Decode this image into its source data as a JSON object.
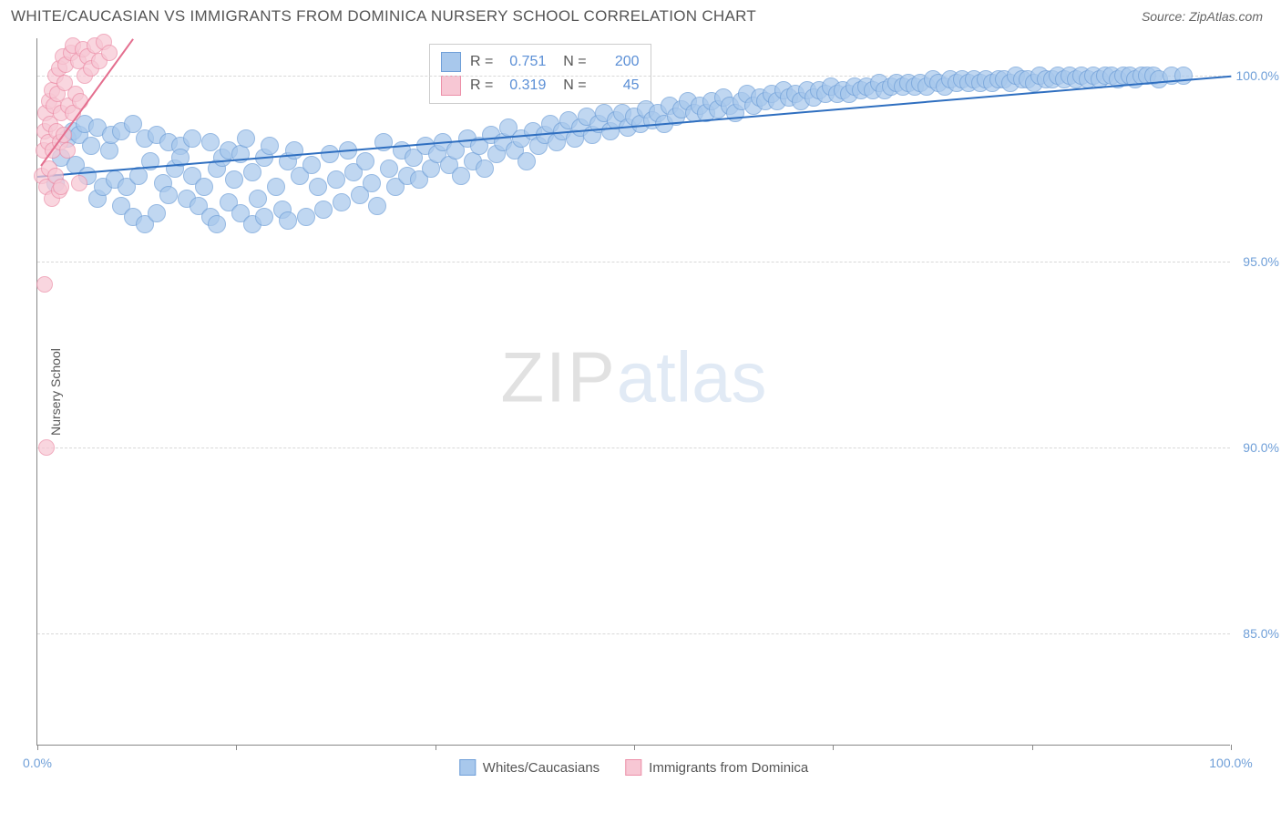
{
  "title": "WHITE/CAUCASIAN VS IMMIGRANTS FROM DOMINICA NURSERY SCHOOL CORRELATION CHART",
  "source_label": "Source: ZipAtlas.com",
  "y_axis_title": "Nursery School",
  "watermark": {
    "zip": "ZIP",
    "atlas": "atlas"
  },
  "chart": {
    "type": "scatter",
    "background_color": "#ffffff",
    "grid_color": "#d8d8d8",
    "axis_color": "#888888",
    "tick_label_color": "#6f9fd8",
    "xlim": [
      0,
      100
    ],
    "ylim": [
      82,
      101
    ],
    "yticks": [
      {
        "v": 85.0,
        "label": "85.0%"
      },
      {
        "v": 90.0,
        "label": "90.0%"
      },
      {
        "v": 95.0,
        "label": "95.0%"
      },
      {
        "v": 100.0,
        "label": "100.0%"
      }
    ],
    "xticks": [
      {
        "v": 0,
        "label": "0.0%"
      },
      {
        "v": 16.67,
        "label": ""
      },
      {
        "v": 33.33,
        "label": ""
      },
      {
        "v": 50.0,
        "label": ""
      },
      {
        "v": 66.67,
        "label": ""
      },
      {
        "v": 83.33,
        "label": ""
      },
      {
        "v": 100,
        "label": "100.0%"
      }
    ],
    "series": [
      {
        "name": "Whites/Caucasians",
        "marker_fill": "#a8c8ec",
        "marker_stroke": "#6f9fd8",
        "marker_opacity": 0.72,
        "marker_radius": 10,
        "line_color": "#2f6fc0",
        "R": "0.751",
        "N": "200",
        "trend": {
          "x1": 0,
          "y1": 97.3,
          "x2": 100,
          "y2": 100.0
        },
        "points": [
          [
            1.5,
            97.1
          ],
          [
            2,
            97.8
          ],
          [
            2.5,
            98.3
          ],
          [
            3,
            98.5
          ],
          [
            3.2,
            97.6
          ],
          [
            3.5,
            98.4
          ],
          [
            4,
            98.7
          ],
          [
            4.2,
            97.3
          ],
          [
            4.5,
            98.1
          ],
          [
            5,
            98.6
          ],
          [
            5,
            96.7
          ],
          [
            5.5,
            97.0
          ],
          [
            6,
            98.0
          ],
          [
            6.2,
            98.4
          ],
          [
            6.5,
            97.2
          ],
          [
            7,
            98.5
          ],
          [
            7,
            96.5
          ],
          [
            7.5,
            97.0
          ],
          [
            8,
            98.7
          ],
          [
            8,
            96.2
          ],
          [
            8.5,
            97.3
          ],
          [
            9,
            98.3
          ],
          [
            9,
            96.0
          ],
          [
            9.5,
            97.7
          ],
          [
            10,
            98.4
          ],
          [
            10,
            96.3
          ],
          [
            10.5,
            97.1
          ],
          [
            11,
            98.2
          ],
          [
            11,
            96.8
          ],
          [
            11.5,
            97.5
          ],
          [
            12,
            98.1
          ],
          [
            12,
            97.8
          ],
          [
            12.5,
            96.7
          ],
          [
            13,
            97.3
          ],
          [
            13,
            98.3
          ],
          [
            13.5,
            96.5
          ],
          [
            14,
            97.0
          ],
          [
            14.5,
            98.2
          ],
          [
            14.5,
            96.2
          ],
          [
            15,
            97.5
          ],
          [
            15,
            96.0
          ],
          [
            15.5,
            97.8
          ],
          [
            16,
            96.6
          ],
          [
            16,
            98.0
          ],
          [
            16.5,
            97.2
          ],
          [
            17,
            96.3
          ],
          [
            17,
            97.9
          ],
          [
            17.5,
            98.3
          ],
          [
            18,
            96.0
          ],
          [
            18,
            97.4
          ],
          [
            18.5,
            96.7
          ],
          [
            19,
            97.8
          ],
          [
            19,
            96.2
          ],
          [
            19.5,
            98.1
          ],
          [
            20,
            97.0
          ],
          [
            20.5,
            96.4
          ],
          [
            21,
            97.7
          ],
          [
            21,
            96.1
          ],
          [
            21.5,
            98.0
          ],
          [
            22,
            97.3
          ],
          [
            22.5,
            96.2
          ],
          [
            23,
            97.6
          ],
          [
            23.5,
            97.0
          ],
          [
            24,
            96.4
          ],
          [
            24.5,
            97.9
          ],
          [
            25,
            97.2
          ],
          [
            25.5,
            96.6
          ],
          [
            26,
            98.0
          ],
          [
            26.5,
            97.4
          ],
          [
            27,
            96.8
          ],
          [
            27.5,
            97.7
          ],
          [
            28,
            97.1
          ],
          [
            28.5,
            96.5
          ],
          [
            29,
            98.2
          ],
          [
            29.5,
            97.5
          ],
          [
            30,
            97.0
          ],
          [
            30.5,
            98.0
          ],
          [
            31,
            97.3
          ],
          [
            31.5,
            97.8
          ],
          [
            32,
            97.2
          ],
          [
            32.5,
            98.1
          ],
          [
            33,
            97.5
          ],
          [
            33.5,
            97.9
          ],
          [
            34,
            98.2
          ],
          [
            34.5,
            97.6
          ],
          [
            35,
            98.0
          ],
          [
            35.5,
            97.3
          ],
          [
            36,
            98.3
          ],
          [
            36.5,
            97.7
          ],
          [
            37,
            98.1
          ],
          [
            37.5,
            97.5
          ],
          [
            38,
            98.4
          ],
          [
            38.5,
            97.9
          ],
          [
            39,
            98.2
          ],
          [
            39.5,
            98.6
          ],
          [
            40,
            98.0
          ],
          [
            40.5,
            98.3
          ],
          [
            41,
            97.7
          ],
          [
            41.5,
            98.5
          ],
          [
            42,
            98.1
          ],
          [
            42.5,
            98.4
          ],
          [
            43,
            98.7
          ],
          [
            43.5,
            98.2
          ],
          [
            44,
            98.5
          ],
          [
            44.5,
            98.8
          ],
          [
            45,
            98.3
          ],
          [
            45.5,
            98.6
          ],
          [
            46,
            98.9
          ],
          [
            46.5,
            98.4
          ],
          [
            47,
            98.7
          ],
          [
            47.5,
            99.0
          ],
          [
            48,
            98.5
          ],
          [
            48.5,
            98.8
          ],
          [
            49,
            99.0
          ],
          [
            49.5,
            98.6
          ],
          [
            50,
            98.9
          ],
          [
            50.5,
            98.7
          ],
          [
            51,
            99.1
          ],
          [
            51.5,
            98.8
          ],
          [
            52,
            99.0
          ],
          [
            52.5,
            98.7
          ],
          [
            53,
            99.2
          ],
          [
            53.5,
            98.9
          ],
          [
            54,
            99.1
          ],
          [
            54.5,
            99.3
          ],
          [
            55,
            99.0
          ],
          [
            55.5,
            99.2
          ],
          [
            56,
            99.0
          ],
          [
            56.5,
            99.3
          ],
          [
            57,
            99.1
          ],
          [
            57.5,
            99.4
          ],
          [
            58,
            99.2
          ],
          [
            58.5,
            99.0
          ],
          [
            59,
            99.3
          ],
          [
            59.5,
            99.5
          ],
          [
            60,
            99.2
          ],
          [
            60.5,
            99.4
          ],
          [
            61,
            99.3
          ],
          [
            61.5,
            99.5
          ],
          [
            62,
            99.3
          ],
          [
            62.5,
            99.6
          ],
          [
            63,
            99.4
          ],
          [
            63.5,
            99.5
          ],
          [
            64,
            99.3
          ],
          [
            64.5,
            99.6
          ],
          [
            65,
            99.4
          ],
          [
            65.5,
            99.6
          ],
          [
            66,
            99.5
          ],
          [
            66.5,
            99.7
          ],
          [
            67,
            99.5
          ],
          [
            67.5,
            99.6
          ],
          [
            68,
            99.5
          ],
          [
            68.5,
            99.7
          ],
          [
            69,
            99.6
          ],
          [
            69.5,
            99.7
          ],
          [
            70,
            99.6
          ],
          [
            70.5,
            99.8
          ],
          [
            71,
            99.6
          ],
          [
            71.5,
            99.7
          ],
          [
            72,
            99.8
          ],
          [
            72.5,
            99.7
          ],
          [
            73,
            99.8
          ],
          [
            73.5,
            99.7
          ],
          [
            74,
            99.8
          ],
          [
            74.5,
            99.7
          ],
          [
            75,
            99.9
          ],
          [
            75.5,
            99.8
          ],
          [
            76,
            99.7
          ],
          [
            76.5,
            99.9
          ],
          [
            77,
            99.8
          ],
          [
            77.5,
            99.9
          ],
          [
            78,
            99.8
          ],
          [
            78.5,
            99.9
          ],
          [
            79,
            99.8
          ],
          [
            79.5,
            99.9
          ],
          [
            80,
            99.8
          ],
          [
            80.5,
            99.9
          ],
          [
            81,
            99.9
          ],
          [
            81.5,
            99.8
          ],
          [
            82,
            100.0
          ],
          [
            82.5,
            99.9
          ],
          [
            83,
            99.9
          ],
          [
            83.5,
            99.8
          ],
          [
            84,
            100.0
          ],
          [
            84.5,
            99.9
          ],
          [
            85,
            99.9
          ],
          [
            85.5,
            100.0
          ],
          [
            86,
            99.9
          ],
          [
            86.5,
            100.0
          ],
          [
            87,
            99.9
          ],
          [
            87.5,
            100.0
          ],
          [
            88,
            99.9
          ],
          [
            88.5,
            100.0
          ],
          [
            89,
            99.9
          ],
          [
            89.5,
            100.0
          ],
          [
            90,
            100.0
          ],
          [
            90.5,
            99.9
          ],
          [
            91,
            100.0
          ],
          [
            91.5,
            100.0
          ],
          [
            92,
            99.9
          ],
          [
            92.5,
            100.0
          ],
          [
            93,
            100.0
          ],
          [
            93.5,
            100.0
          ],
          [
            94,
            99.9
          ],
          [
            95,
            100.0
          ],
          [
            96,
            100.0
          ]
        ]
      },
      {
        "name": "Immigrants from Dominica",
        "marker_fill": "#f7c7d4",
        "marker_stroke": "#ec8fa8",
        "marker_opacity": 0.72,
        "marker_radius": 9,
        "line_color": "#e46f8f",
        "R": "0.319",
        "N": "45",
        "trend": {
          "x1": 0.3,
          "y1": 97.6,
          "x2": 8.0,
          "y2": 101.0
        },
        "points": [
          [
            0.4,
            97.3
          ],
          [
            0.5,
            98.0
          ],
          [
            0.6,
            98.5
          ],
          [
            0.7,
            99.0
          ],
          [
            0.8,
            97.0
          ],
          [
            0.9,
            98.2
          ],
          [
            1.0,
            99.3
          ],
          [
            1.0,
            97.5
          ],
          [
            1.1,
            98.7
          ],
          [
            1.2,
            99.6
          ],
          [
            1.2,
            96.7
          ],
          [
            1.3,
            98.0
          ],
          [
            1.4,
            99.2
          ],
          [
            1.5,
            100.0
          ],
          [
            1.5,
            97.3
          ],
          [
            1.6,
            98.5
          ],
          [
            1.7,
            99.5
          ],
          [
            1.8,
            100.2
          ],
          [
            1.8,
            96.9
          ],
          [
            1.9,
            98.2
          ],
          [
            2.0,
            99.0
          ],
          [
            2.0,
            97.0
          ],
          [
            2.1,
            100.5
          ],
          [
            2.2,
            98.4
          ],
          [
            2.3,
            99.8
          ],
          [
            2.4,
            100.3
          ],
          [
            2.5,
            98.0
          ],
          [
            2.6,
            99.2
          ],
          [
            2.8,
            100.6
          ],
          [
            3.0,
            99.0
          ],
          [
            3.0,
            100.8
          ],
          [
            3.2,
            99.5
          ],
          [
            3.4,
            100.4
          ],
          [
            3.6,
            99.3
          ],
          [
            3.8,
            100.7
          ],
          [
            4.0,
            100.0
          ],
          [
            4.2,
            100.5
          ],
          [
            4.5,
            100.2
          ],
          [
            4.8,
            100.8
          ],
          [
            5.2,
            100.4
          ],
          [
            5.6,
            100.9
          ],
          [
            6.0,
            100.6
          ],
          [
            0.6,
            94.4
          ],
          [
            3.5,
            97.1
          ],
          [
            0.8,
            90.0
          ]
        ]
      }
    ]
  },
  "legend_box": {
    "r_label": "R =",
    "n_label": "N ="
  },
  "bottom_legend": [
    {
      "label": "Whites/Caucasians",
      "fill": "#a8c8ec",
      "stroke": "#6f9fd8"
    },
    {
      "label": "Immigrants from Dominica",
      "fill": "#f7c7d4",
      "stroke": "#ec8fa8"
    }
  ]
}
